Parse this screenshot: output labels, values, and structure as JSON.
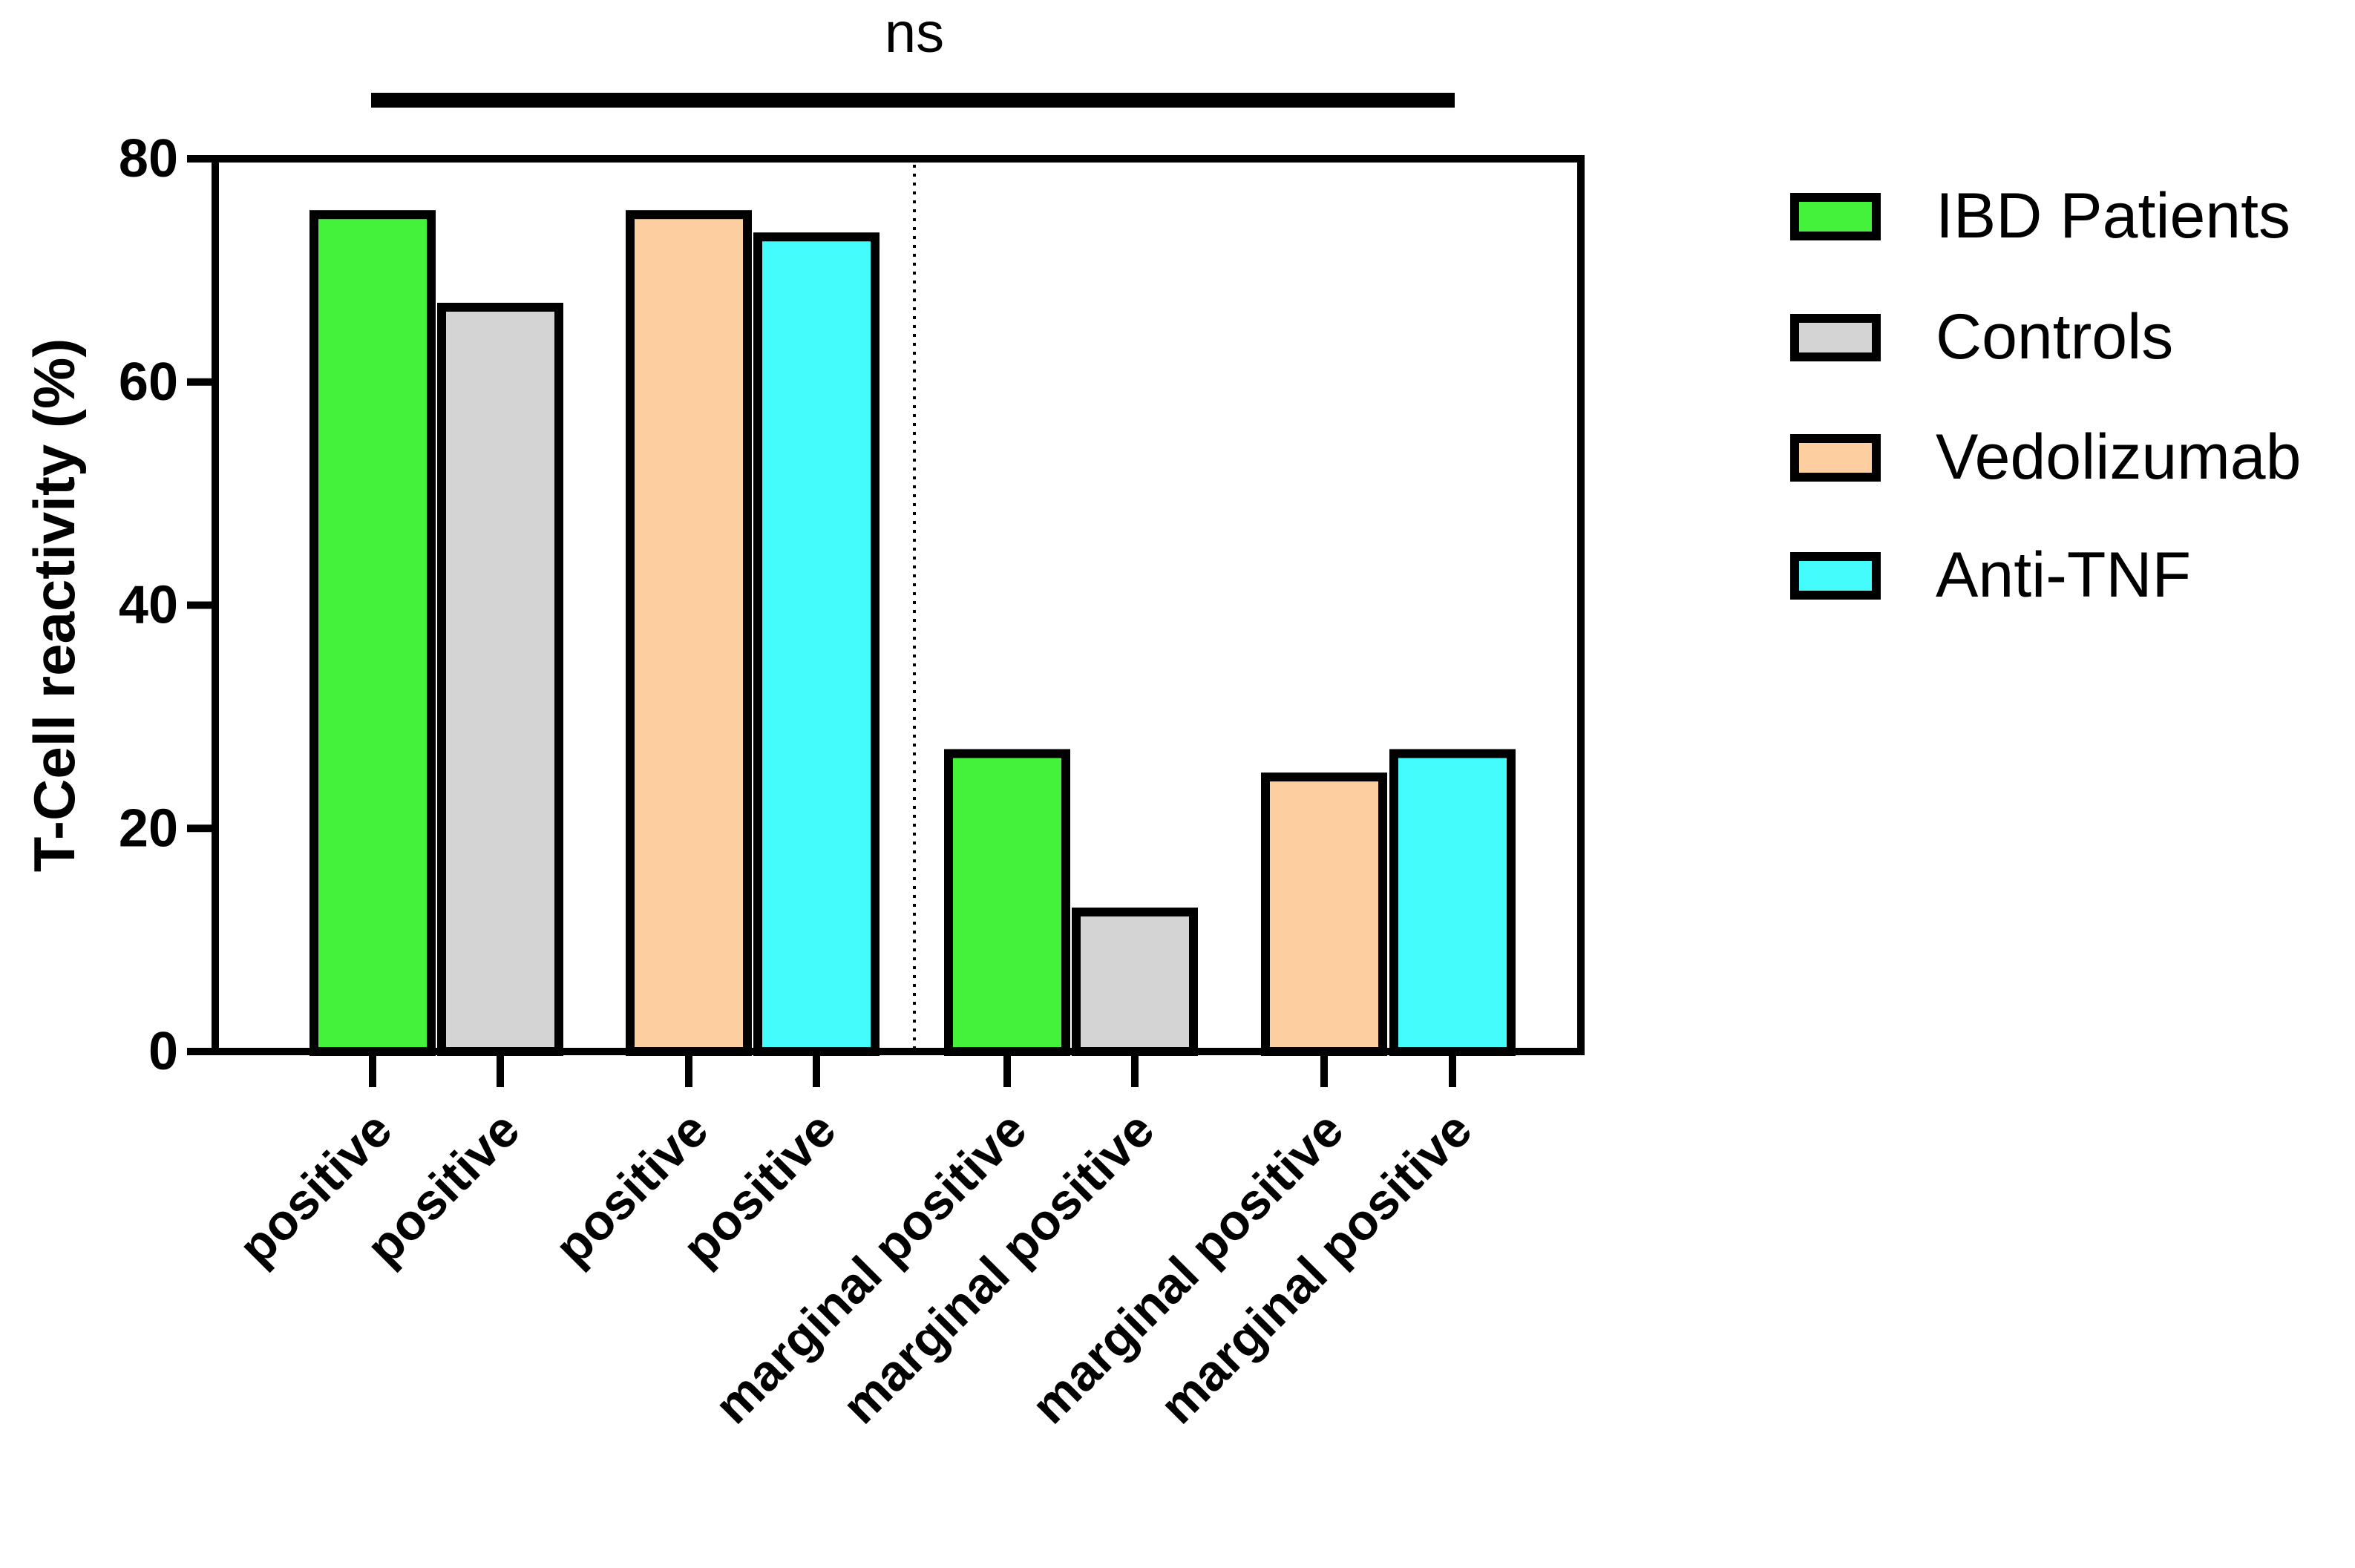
{
  "chart_data": {
    "type": "bar",
    "ylabel": "T-Cell reactivity (%)",
    "ylim": [
      0,
      80
    ],
    "yticks": [
      0,
      20,
      40,
      60,
      80
    ],
    "grid": false,
    "legend_position": "right",
    "annotation": "ns",
    "colors": {
      "IBD Patients": "#44f23c",
      "Controls": "#d4d4d4",
      "Vedolizumab": "#fdcea0",
      "Anti-TNF": "#44fcfc"
    },
    "legend": [
      {
        "name": "IBD Patients",
        "color": "#44f23c"
      },
      {
        "name": "Controls",
        "color": "#d4d4d4"
      },
      {
        "name": "Vedolizumab",
        "color": "#fdcea0"
      },
      {
        "name": "Anti-TNF",
        "color": "#44fcfc"
      }
    ],
    "bars": [
      {
        "label": "positive",
        "series": "IBD Patients",
        "value": 75
      },
      {
        "label": "positive",
        "series": "Controls",
        "value": 66.7
      },
      {
        "label": "positive",
        "series": "Vedolizumab",
        "value": 75
      },
      {
        "label": "positive",
        "series": "Anti-TNF",
        "value": 73
      },
      {
        "label": "marginal positive",
        "series": "IBD Patients",
        "value": 26.7
      },
      {
        "label": "marginal positive",
        "series": "Controls",
        "value": 12.5
      },
      {
        "label": "marginal positive",
        "series": "Vedolizumab",
        "value": 24.6
      },
      {
        "label": "marginal positive",
        "series": "Anti-TNF",
        "value": 26.7
      }
    ]
  }
}
